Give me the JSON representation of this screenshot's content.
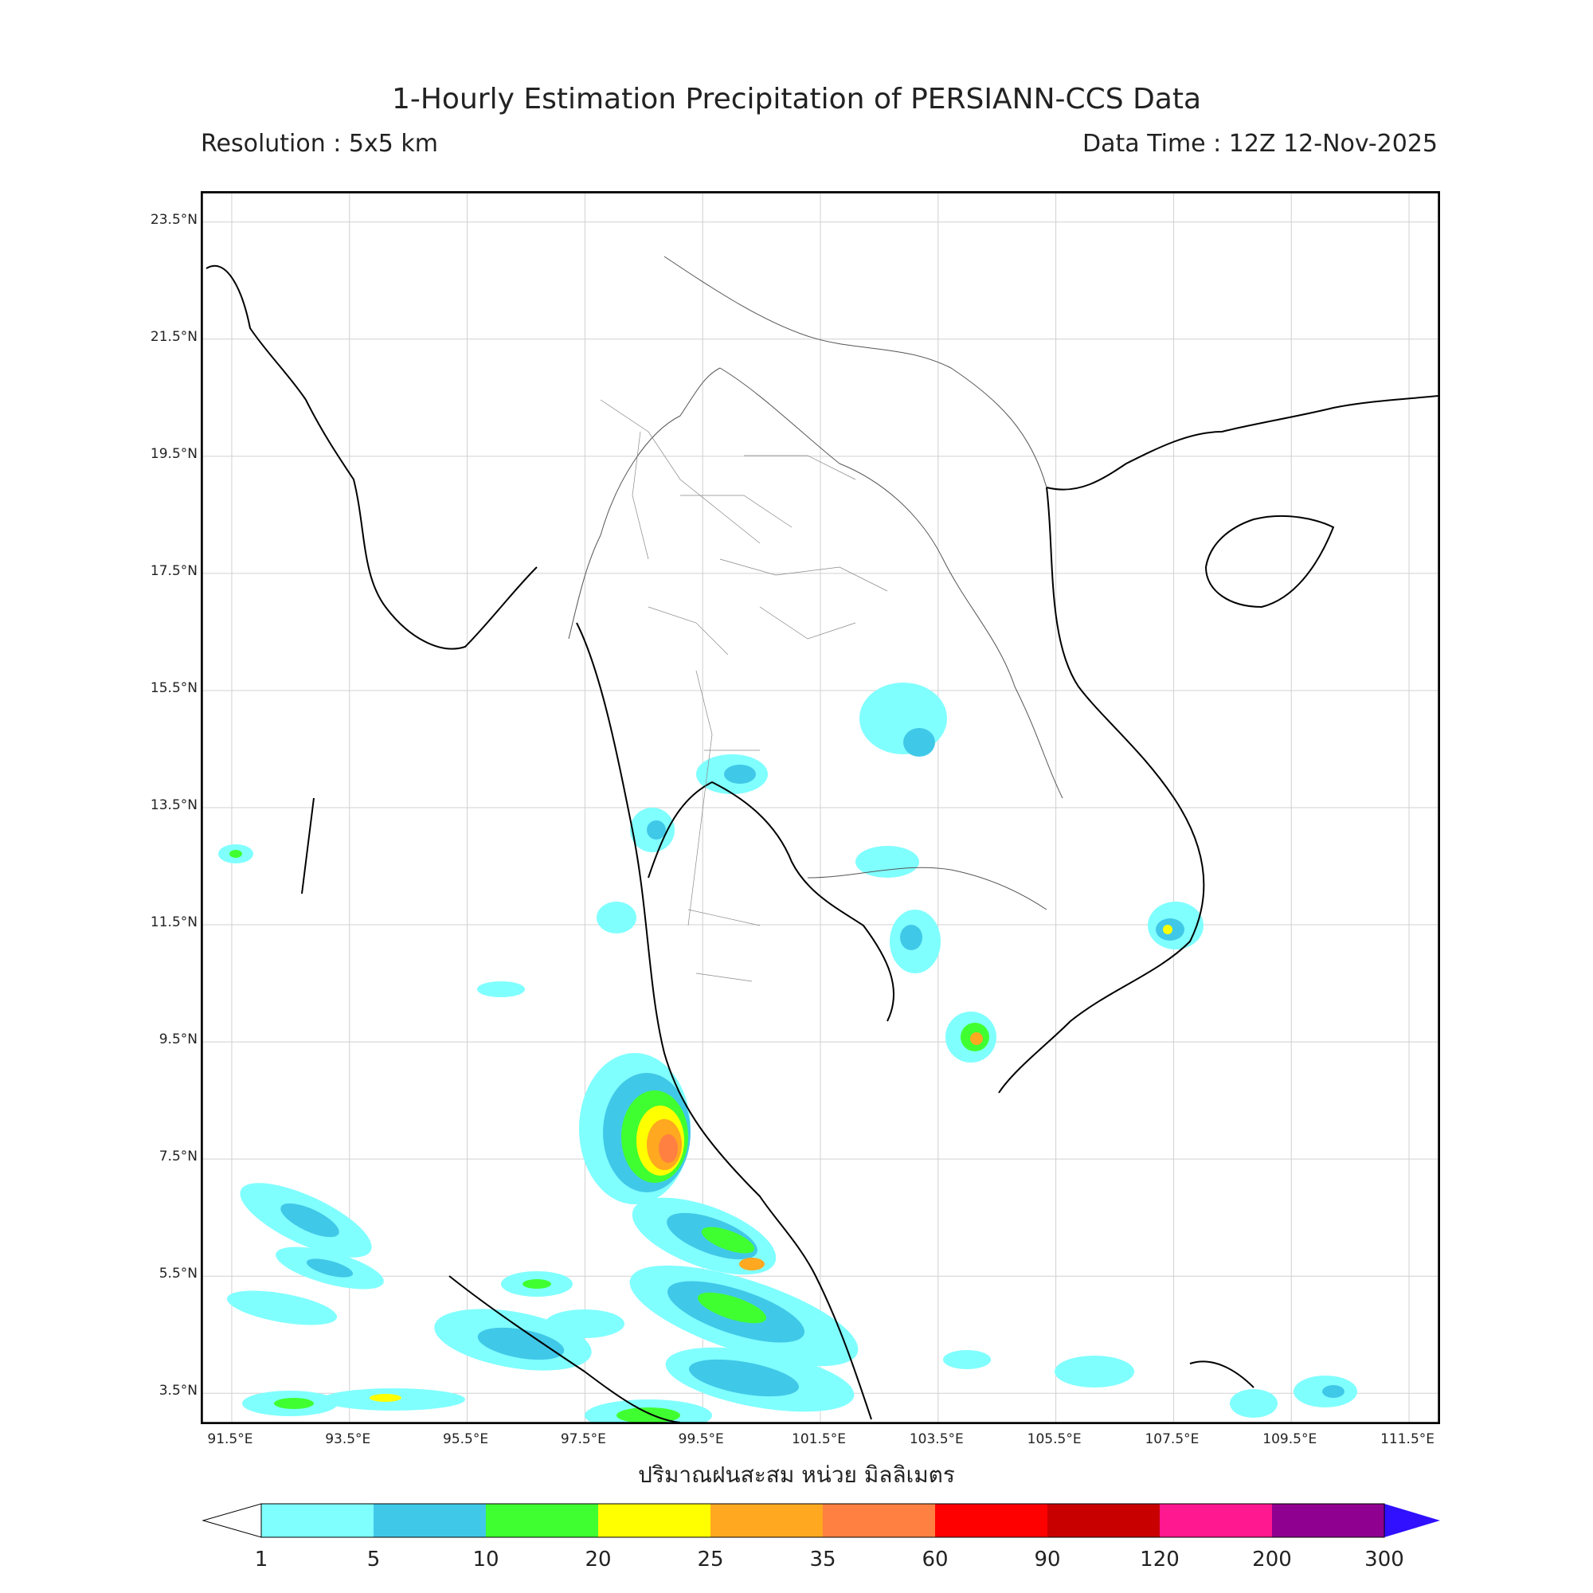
{
  "title": "1-Hourly Estimation Precipitation of PERSIANN-CCS Data",
  "resolution": "Resolution : 5x5 km",
  "data_time": "Data Time : 12Z 12-Nov-2025",
  "map": {
    "lon_range": [
      91,
      112
    ],
    "lat_range": [
      3,
      24
    ],
    "lat_ticks": [
      "23.5°N",
      "21.5°N",
      "19.5°N",
      "17.5°N",
      "15.5°N",
      "13.5°N",
      "11.5°N",
      "9.5°N",
      "7.5°N",
      "5.5°N",
      "3.5°N"
    ],
    "lon_ticks": [
      "91.5°E",
      "93.5°E",
      "95.5°E",
      "97.5°E",
      "99.5°E",
      "101.5°E",
      "103.5°E",
      "105.5°E",
      "107.5°E",
      "109.5°E",
      "111.5°E"
    ],
    "grid": true
  },
  "xlabel": "ปริมาณฝนสะสม หน่วย มิลลิเมตร",
  "colorbar": {
    "labels": [
      "1",
      "5",
      "10",
      "20",
      "25",
      "35",
      "60",
      "90",
      "120",
      "200",
      "300"
    ],
    "colors": [
      "#80ffff",
      "#40c8e8",
      "#40ff30",
      "#ffff00",
      "#ffa820",
      "#ff8040",
      "#ff0000",
      "#c80000",
      "#ff1890",
      "#900090",
      "#3010ff"
    ]
  }
}
